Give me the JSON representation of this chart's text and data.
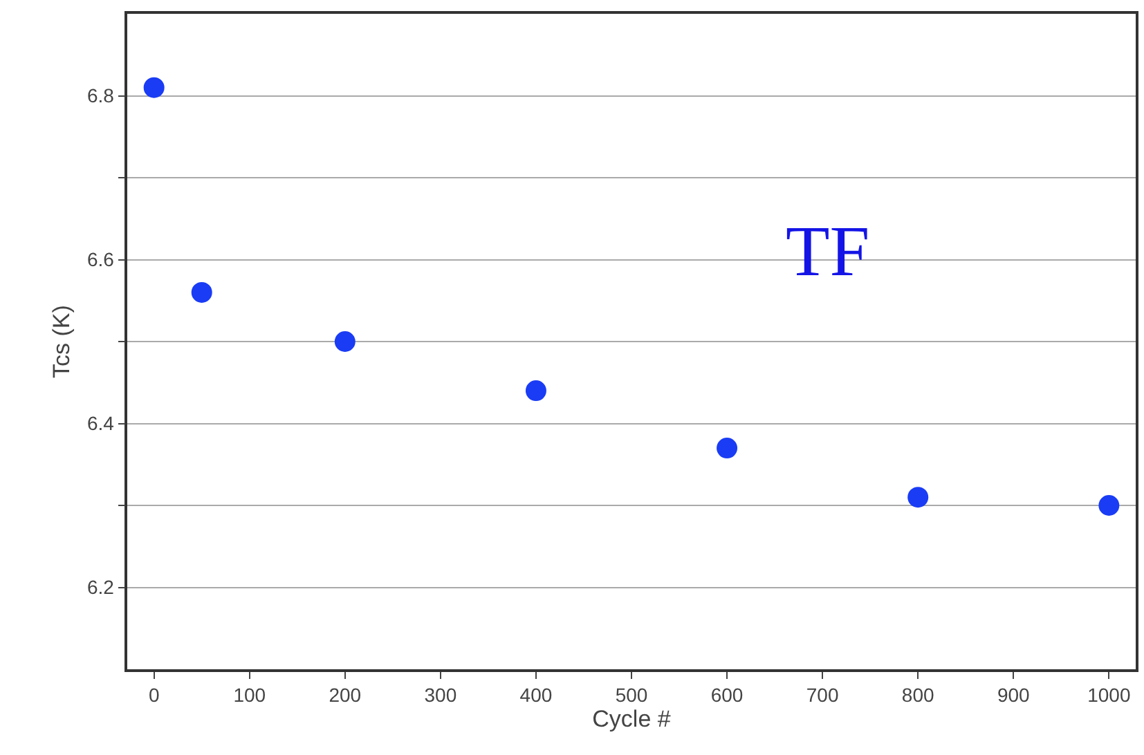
{
  "chart_data": {
    "type": "scatter",
    "xlabel": "Cycle #",
    "ylabel": "Tcs (K)",
    "x": [
      0,
      50,
      200,
      400,
      600,
      800,
      1000
    ],
    "series": [
      {
        "color": "#1a3cf5",
        "values": [
          6.81,
          6.56,
          6.5,
          6.44,
          6.37,
          6.31,
          6.3
        ]
      }
    ],
    "xlim": [
      -28,
      1028
    ],
    "xticks": [
      0,
      100,
      200,
      300,
      400,
      500,
      600,
      700,
      800,
      900,
      1000
    ],
    "ylim": [
      6.1,
      6.9
    ],
    "yticks": [
      6.2,
      {
        "value": 6.3,
        "label": null
      },
      6.4,
      {
        "value": 6.5,
        "label": null
      },
      6.6,
      {
        "value": 6.7,
        "label": null
      },
      6.8
    ],
    "grid": "y",
    "marker": "circle",
    "annotations": [
      "TF"
    ]
  }
}
